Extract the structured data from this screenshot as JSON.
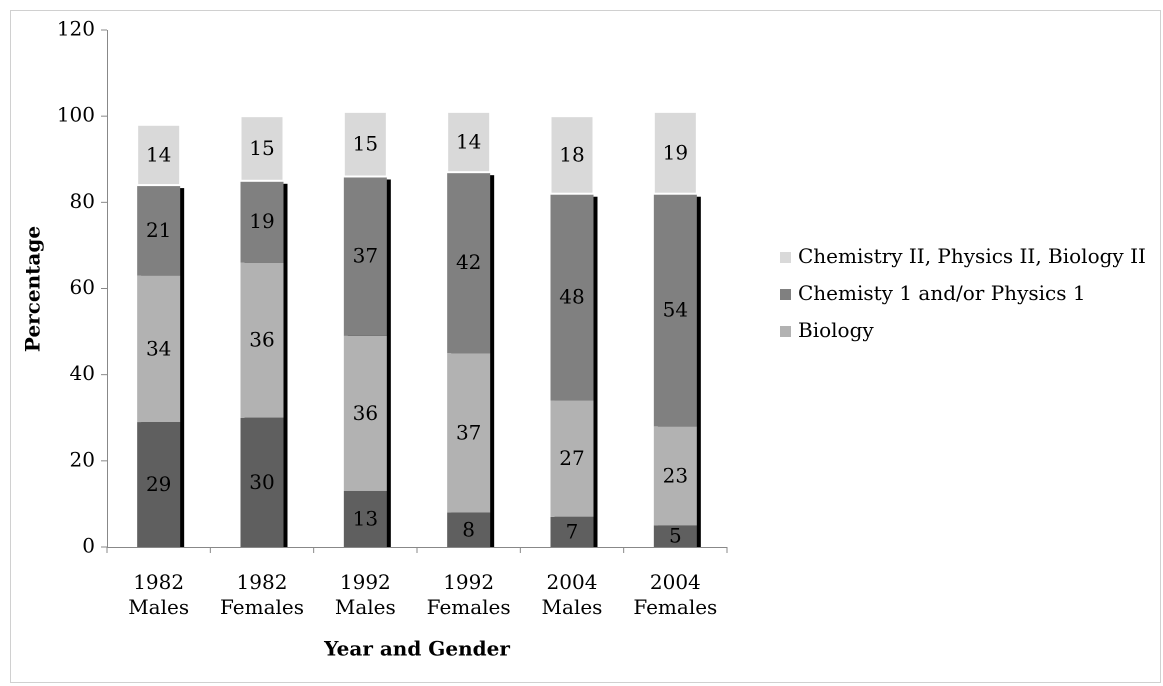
{
  "chart_data": {
    "type": "stacked-bar",
    "categories": [
      [
        "1982",
        "Males"
      ],
      [
        "1982",
        "Females"
      ],
      [
        "1992",
        "Males"
      ],
      [
        "1992",
        "Females"
      ],
      [
        "2004",
        "Males"
      ],
      [
        "2004",
        "Females"
      ]
    ],
    "series": [
      {
        "color": "#5f5f5f",
        "values": [
          29,
          30,
          13,
          8,
          7,
          5
        ]
      },
      {
        "name": "Biology",
        "color": "#b2b2b2",
        "values": [
          34,
          36,
          36,
          37,
          27,
          23
        ]
      },
      {
        "name": "Chemisty 1 and/or Physics 1",
        "color": "#808080",
        "values": [
          21,
          19,
          37,
          42,
          48,
          54
        ]
      },
      {
        "name": "Chemistry II, Physics II, Biology II",
        "color": "#d9d9d9",
        "values": [
          14,
          15,
          15,
          14,
          18,
          19
        ]
      }
    ],
    "ylim": [
      0,
      120
    ],
    "yticks": [
      0,
      20,
      40,
      60,
      80,
      100,
      120
    ],
    "xlabel": "Year and Gender",
    "ylabel": "Percentage",
    "legend": "right"
  }
}
